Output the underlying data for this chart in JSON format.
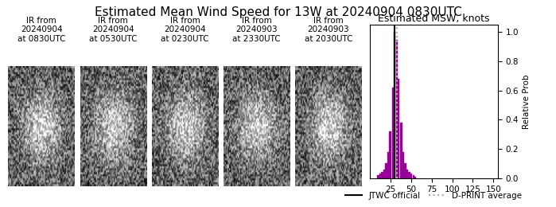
{
  "title": "Estimated Mean Wind Speed for 13W at 20240904 0830UTC",
  "hist_title": "Estimated MSW, knots",
  "ylabel_right": "Relative Prob",
  "xlim": [
    0,
    155
  ],
  "ylim": [
    0.0,
    1.05
  ],
  "xticks": [
    25,
    50,
    75,
    100,
    125,
    150
  ],
  "yticks": [
    0.0,
    0.2,
    0.4,
    0.6,
    0.8,
    1.0
  ],
  "bar_color": "#990099",
  "bar_data": [
    [
      10,
      0.02
    ],
    [
      13,
      0.03
    ],
    [
      15,
      0.04
    ],
    [
      18,
      0.06
    ],
    [
      20,
      0.1
    ],
    [
      23,
      0.18
    ],
    [
      25,
      0.32
    ],
    [
      28,
      0.62
    ],
    [
      30,
      1.0
    ],
    [
      33,
      0.95
    ],
    [
      35,
      0.68
    ],
    [
      38,
      0.38
    ],
    [
      40,
      0.18
    ],
    [
      43,
      0.1
    ],
    [
      45,
      0.06
    ],
    [
      48,
      0.04
    ],
    [
      50,
      0.03
    ],
    [
      53,
      0.02
    ],
    [
      55,
      0.01
    ]
  ],
  "bar_width": 2.5,
  "jtwc_line_x": 30,
  "dprint_line_x": 33,
  "jtwc_color": "#000000",
  "dprint_color": "#aaaaaa",
  "satellite_labels": [
    "IR from\n20240904\nat 0830UTC",
    "IR from\n20240904\nat 0530UTC",
    "IR from\n20240904\nat 0230UTC",
    "IR from\n20240903\nat 2330UTC",
    "IR from\n20240903\nat 2030UTC"
  ],
  "legend_jtwc": "JTWC official",
  "legend_dprint": "D-PRINT average",
  "title_fontsize": 11,
  "hist_title_fontsize": 9,
  "label_fontsize": 7.5,
  "tick_fontsize": 7.5,
  "legend_fontsize": 7.5,
  "sat_label_fontsize": 7.5
}
